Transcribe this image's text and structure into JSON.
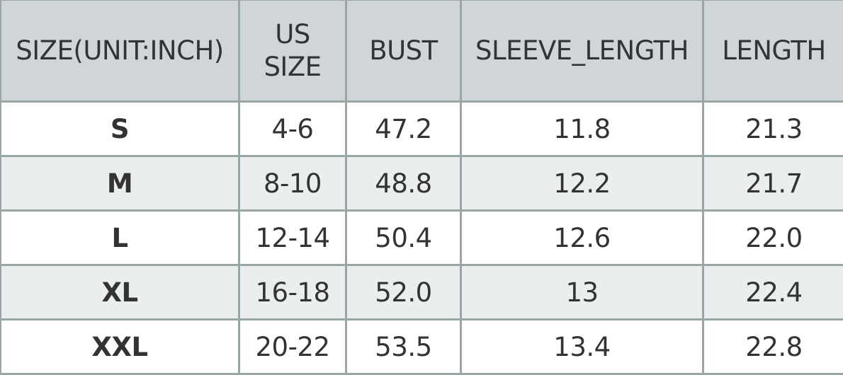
{
  "headers": [
    "SIZE(UNIT:INCH)",
    "US SIZE",
    "BUST",
    "SLEEVE_LENGTH",
    "LENGTH"
  ],
  "rows": [
    [
      "S",
      "4-6",
      "47.2",
      "11.8",
      "21.3"
    ],
    [
      "M",
      "8-10",
      "48.8",
      "12.2",
      "21.7"
    ],
    [
      "L",
      "12-14",
      "50.4",
      "12.6",
      "22.0"
    ],
    [
      "XL",
      "16-18",
      "52.0",
      "13",
      "22.4"
    ],
    [
      "XXL",
      "20-22",
      "53.5",
      "13.4",
      "22.8"
    ]
  ],
  "colors": {
    "header_bg": "#d0d5d9",
    "alt_row_bg": "#eaeeef",
    "border": "#98a6a5",
    "text": "#333333"
  }
}
